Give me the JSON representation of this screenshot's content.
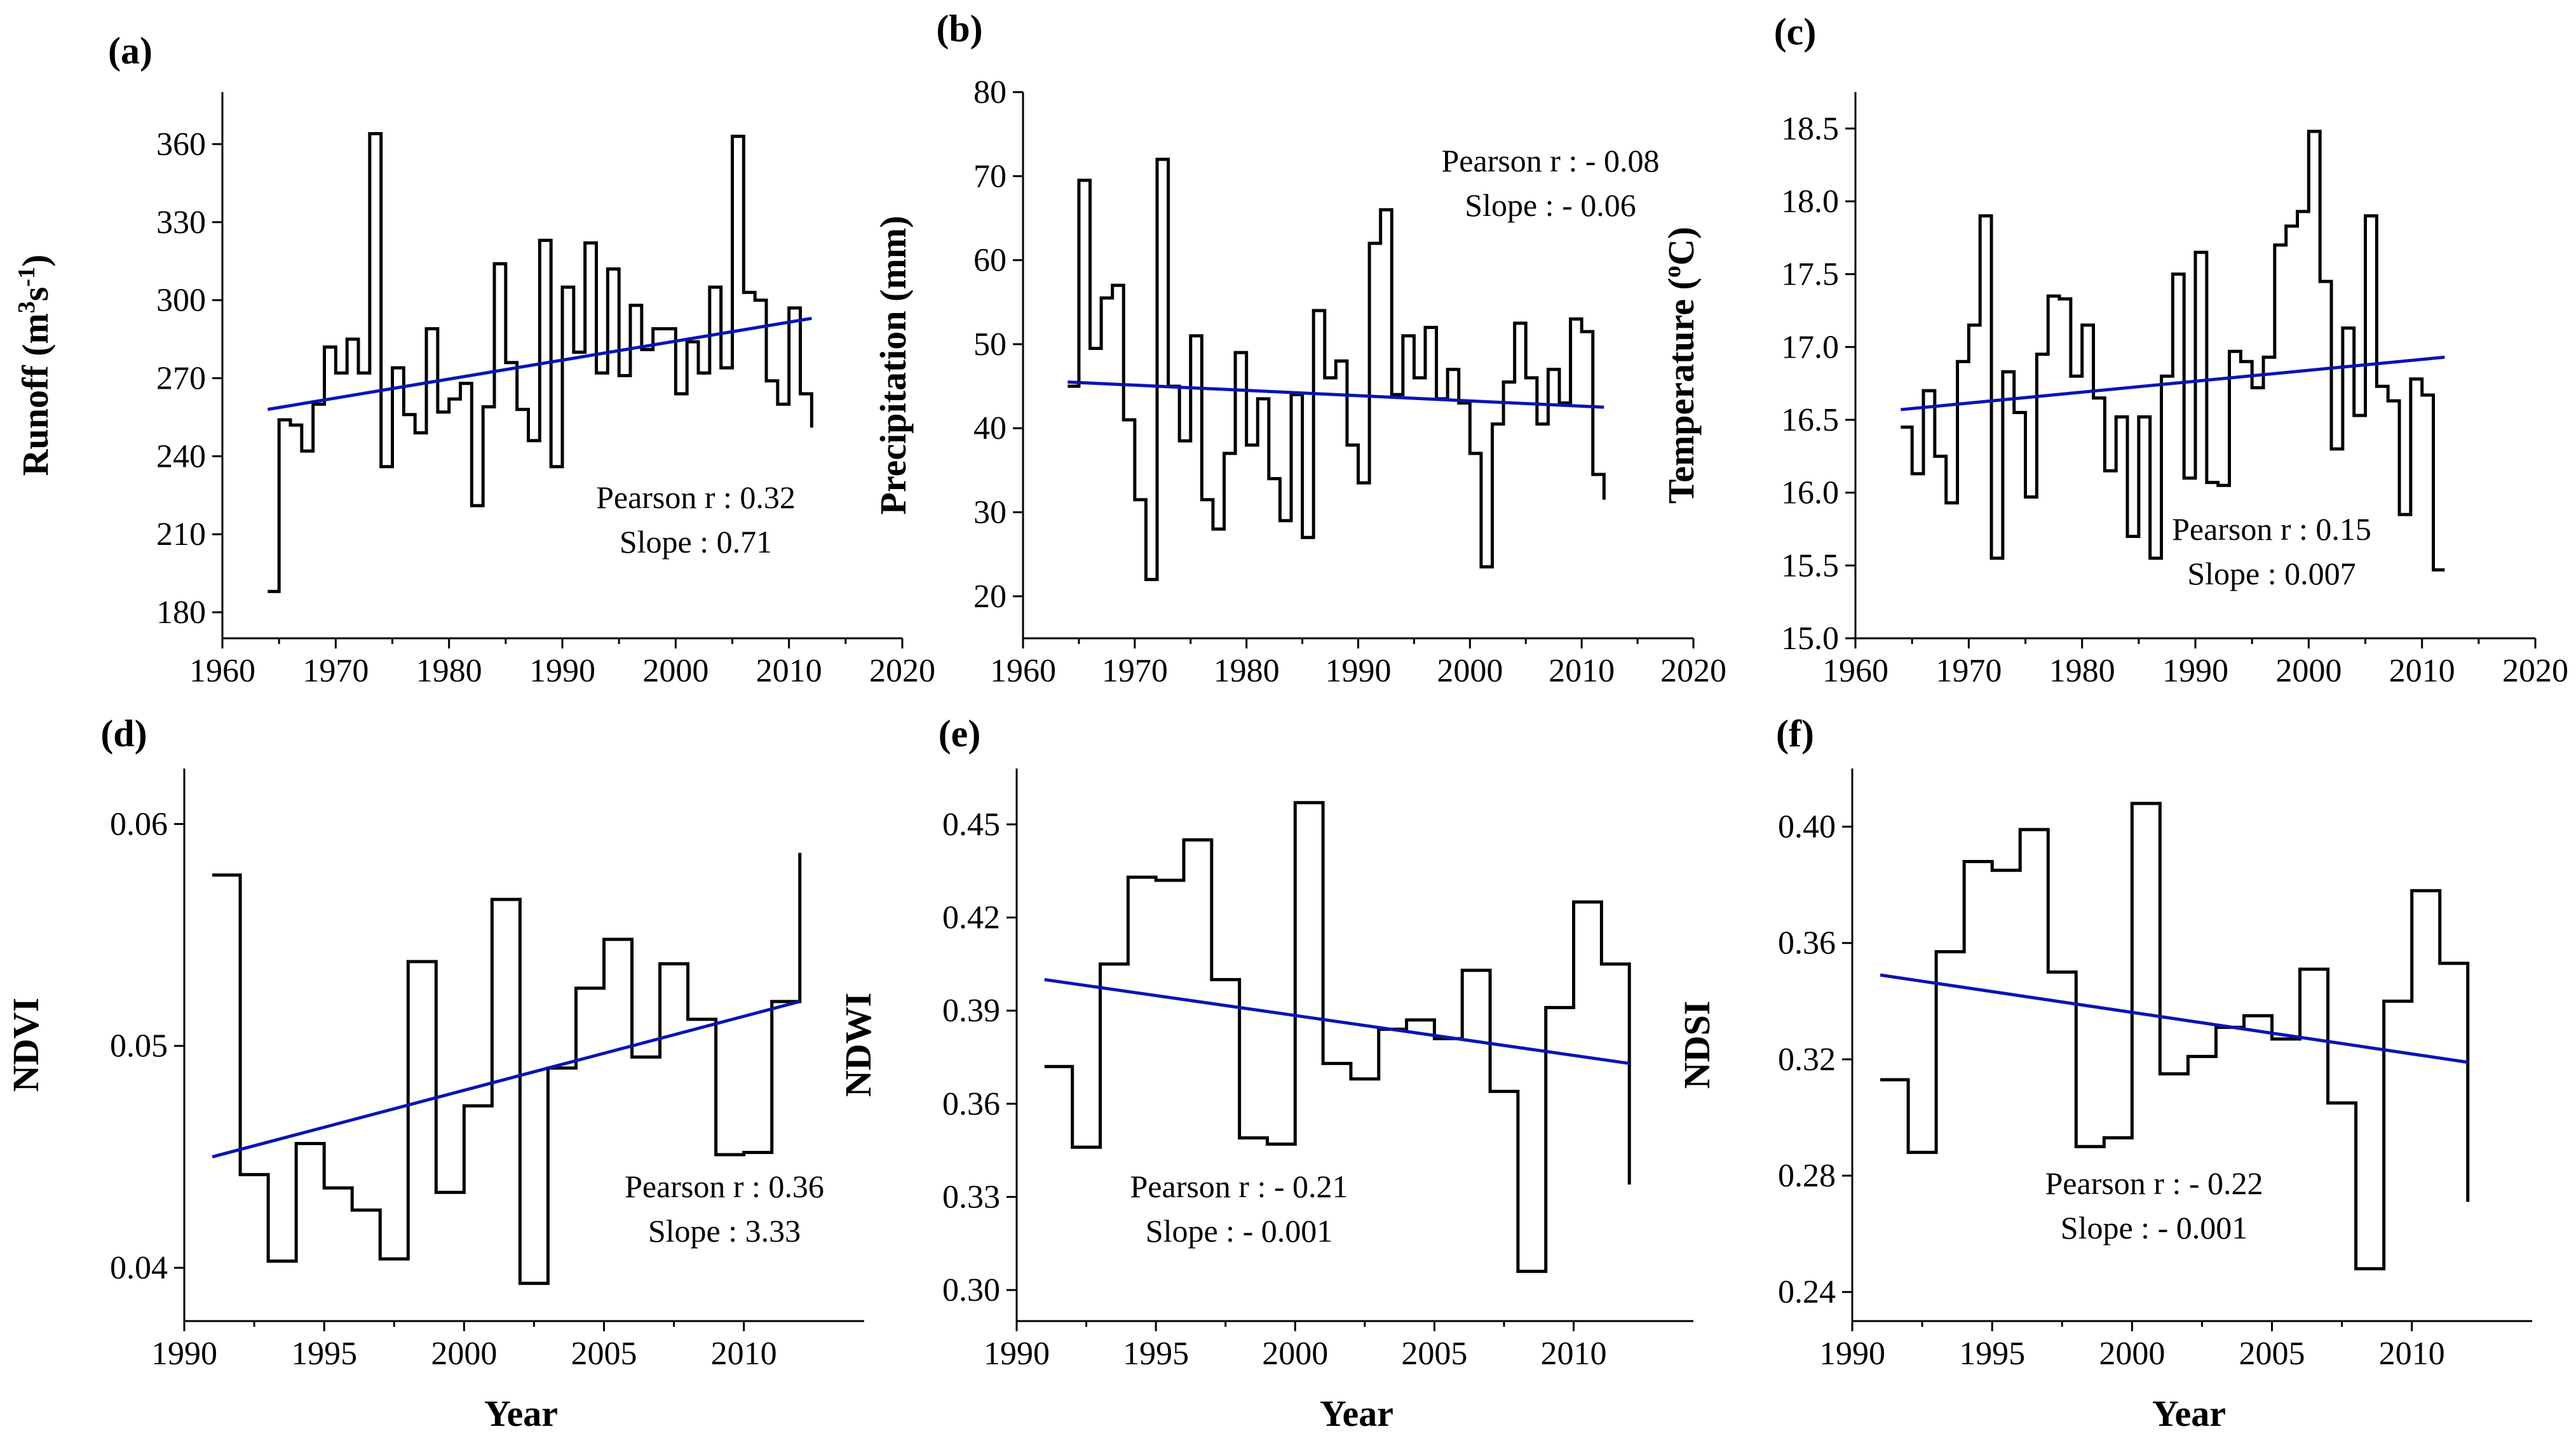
{
  "chart_data": [
    {
      "panel": "(a)",
      "type": "line",
      "ylabel": "Runoff (m3s-1)",
      "ylabel_parts": [
        "Runoff (m",
        "3",
        "s",
        "-1",
        ")"
      ],
      "xlim": [
        1960,
        2020
      ],
      "ylim": [
        170,
        380
      ],
      "xticks": [
        1960,
        1970,
        1980,
        1990,
        2000,
        2010,
        2020
      ],
      "yticks": [
        180,
        210,
        240,
        270,
        300,
        330,
        360
      ],
      "decimals": 0,
      "series": {
        "name": "Runoff",
        "x": [
          1964,
          1965,
          1966,
          1967,
          1968,
          1969,
          1970,
          1971,
          1972,
          1973,
          1974,
          1975,
          1976,
          1977,
          1978,
          1979,
          1980,
          1981,
          1982,
          1983,
          1984,
          1985,
          1986,
          1987,
          1988,
          1989,
          1990,
          1991,
          1992,
          1993,
          1994,
          1995,
          1996,
          1997,
          1998,
          1999,
          2000,
          2001,
          2002,
          2003,
          2004,
          2005,
          2006,
          2007,
          2008,
          2009,
          2010,
          2011
        ],
        "y": [
          188,
          254,
          252,
          242,
          260,
          282,
          272,
          285,
          272,
          364,
          236,
          274,
          256,
          249,
          289,
          257,
          262,
          268,
          221,
          259,
          314,
          276,
          258,
          246,
          323,
          236,
          305,
          280,
          322,
          272,
          312,
          271,
          298,
          281,
          289,
          289,
          264,
          284,
          272,
          305,
          274,
          363,
          303,
          300,
          269,
          260,
          297,
          264
        ],
        "end": 2012,
        "end_y": 251
      },
      "trend": {
        "x": [
          1964,
          2012
        ],
        "y": [
          258,
          293
        ]
      },
      "annotations": [
        "Pearson r : 0.32",
        "Slope : 0.71"
      ]
    },
    {
      "panel": "(b)",
      "type": "line",
      "ylabel": "Precipitation (mm)",
      "xlim": [
        1960,
        2020
      ],
      "ylim": [
        15,
        80
      ],
      "xticks": [
        1960,
        1970,
        1980,
        1990,
        2000,
        2010,
        2020
      ],
      "yticks": [
        20,
        30,
        40,
        50,
        60,
        70,
        80
      ],
      "decimals": 0,
      "series": {
        "name": "Precipitation",
        "x": [
          1964,
          1965,
          1966,
          1967,
          1968,
          1969,
          1970,
          1971,
          1972,
          1973,
          1974,
          1975,
          1976,
          1977,
          1978,
          1979,
          1980,
          1981,
          1982,
          1983,
          1984,
          1985,
          1986,
          1987,
          1988,
          1989,
          1990,
          1991,
          1992,
          1993,
          1994,
          1995,
          1996,
          1997,
          1998,
          1999,
          2000,
          2001,
          2002,
          2003,
          2004,
          2005,
          2006,
          2007,
          2008,
          2009,
          2010,
          2011
        ],
        "y": [
          45,
          69.5,
          49.5,
          55.5,
          57,
          41,
          31.5,
          22,
          72,
          45,
          38.5,
          51,
          31.5,
          28,
          37,
          49,
          38,
          43.5,
          34,
          29,
          44,
          27,
          54,
          46,
          48,
          38,
          33.5,
          62,
          66,
          44,
          51,
          46,
          52,
          43.5,
          47,
          43,
          37,
          23.5,
          40.5,
          45.5,
          52.5,
          46,
          40.5,
          47,
          43,
          53,
          51.5,
          34.5
        ],
        "end": 2012,
        "end_y": 31.5
      },
      "trend": {
        "x": [
          1964,
          2012
        ],
        "y": [
          45.5,
          42.5
        ]
      },
      "annotations": [
        "Pearson r : - 0.08",
        "Slope : - 0.06"
      ]
    },
    {
      "panel": "(c)",
      "type": "line",
      "ylabel": "Temperature (°C)",
      "ylabel_parts": [
        "Temperature (",
        "o",
        "C)"
      ],
      "xlim": [
        1960,
        2020
      ],
      "ylim": [
        15.0,
        18.75
      ],
      "xticks": [
        1960,
        1970,
        1980,
        1990,
        2000,
        2010,
        2020
      ],
      "yticks": [
        15.0,
        15.5,
        16.0,
        16.5,
        17.0,
        17.5,
        18.0,
        18.5
      ],
      "decimals": 1,
      "series": {
        "name": "Temperature",
        "x": [
          1964,
          1965,
          1966,
          1967,
          1968,
          1969,
          1970,
          1971,
          1972,
          1973,
          1974,
          1975,
          1976,
          1977,
          1978,
          1979,
          1980,
          1981,
          1982,
          1983,
          1984,
          1985,
          1986,
          1987,
          1988,
          1989,
          1990,
          1991,
          1992,
          1993,
          1994,
          1995,
          1996,
          1997,
          1998,
          1999,
          2000,
          2001,
          2002,
          2003,
          2004,
          2005,
          2006,
          2007,
          2008,
          2009,
          2010,
          2011
        ],
        "y": [
          16.45,
          16.13,
          16.7,
          16.25,
          15.93,
          16.9,
          17.15,
          17.9,
          15.55,
          16.83,
          16.55,
          15.97,
          16.95,
          17.35,
          17.33,
          16.8,
          17.15,
          16.65,
          16.15,
          16.52,
          15.7,
          16.52,
          15.55,
          16.8,
          17.5,
          16.1,
          17.65,
          16.07,
          16.05,
          16.97,
          16.9,
          16.72,
          16.93,
          17.7,
          17.83,
          17.93,
          18.48,
          17.45,
          16.3,
          17.13,
          16.53,
          17.9,
          16.73,
          16.63,
          15.85,
          16.78,
          16.67,
          15.47
        ],
        "end": 2012,
        "end_y": 15.47
      },
      "trend": {
        "x": [
          1964,
          2012
        ],
        "y": [
          16.57,
          16.93
        ]
      },
      "annotations": [
        "Pearson r : 0.15",
        "Slope : 0.007"
      ]
    },
    {
      "panel": "(d)",
      "type": "line",
      "ylabel": "NDVI",
      "xlabel": "Year",
      "xlim": [
        1990,
        2014.3
      ],
      "ylim": [
        0.0376,
        0.0625
      ],
      "xticks": [
        1990,
        1995,
        2000,
        2005,
        2010
      ],
      "yticks": [
        0.04,
        0.05,
        0.06
      ],
      "decimals": 2,
      "series": {
        "name": "NDVI",
        "x": [
          1991,
          1992,
          1993,
          1994,
          1995,
          1996,
          1997,
          1998,
          1999,
          2000,
          2001,
          2002,
          2003,
          2004,
          2005,
          2006,
          2007,
          2008,
          2009,
          2010,
          2011
        ],
        "y": [
          0.0577,
          0.0442,
          0.0403,
          0.0456,
          0.0436,
          0.0426,
          0.0404,
          0.0538,
          0.0434,
          0.0473,
          0.0566,
          0.0393,
          0.049,
          0.0526,
          0.0548,
          0.0495,
          0.0537,
          0.0512,
          0.0451,
          0.0452,
          0.052
        ],
        "end": 2012,
        "end_y": 0.0587
      },
      "trend": {
        "x": [
          1991,
          2012
        ],
        "y": [
          0.045,
          0.052
        ]
      },
      "annotations": [
        "Pearson r : 0.36",
        "Slope : 3.33"
      ]
    },
    {
      "panel": "(e)",
      "type": "line",
      "ylabel": "NDWI",
      "xlabel": "Year",
      "xlim": [
        1990,
        2014.3
      ],
      "ylim": [
        0.29,
        0.468
      ],
      "xticks": [
        1990,
        1995,
        2000,
        2005,
        2010
      ],
      "yticks": [
        0.3,
        0.33,
        0.36,
        0.39,
        0.42,
        0.45
      ],
      "decimals": 2,
      "series": {
        "name": "NDWI",
        "x": [
          1991,
          1992,
          1993,
          1994,
          1995,
          1996,
          1997,
          1998,
          1999,
          2000,
          2001,
          2002,
          2003,
          2004,
          2005,
          2006,
          2007,
          2008,
          2009,
          2010,
          2011
        ],
        "y": [
          0.372,
          0.346,
          0.405,
          0.433,
          0.432,
          0.445,
          0.4,
          0.349,
          0.347,
          0.457,
          0.373,
          0.368,
          0.384,
          0.387,
          0.381,
          0.403,
          0.364,
          0.306,
          0.391,
          0.425,
          0.405
        ],
        "end": 2012,
        "end_y": 0.334
      },
      "trend": {
        "x": [
          1991,
          2012
        ],
        "y": [
          0.4,
          0.373
        ]
      },
      "annotations": [
        "Pearson r : - 0.21",
        "Slope : - 0.001"
      ]
    },
    {
      "panel": "(f)",
      "type": "line",
      "ylabel": "NDSI",
      "xlabel": "Year",
      "xlim": [
        1990,
        2014.3
      ],
      "ylim": [
        0.23,
        0.42
      ],
      "xticks": [
        1990,
        1995,
        2000,
        2005,
        2010
      ],
      "yticks": [
        0.24,
        0.28,
        0.32,
        0.36,
        0.4
      ],
      "decimals": 2,
      "series": {
        "name": "NDSI",
        "x": [
          1991,
          1992,
          1993,
          1994,
          1995,
          1996,
          1997,
          1998,
          1999,
          2000,
          2001,
          2002,
          2003,
          2004,
          2005,
          2006,
          2007,
          2008,
          2009,
          2010,
          2011
        ],
        "y": [
          0.313,
          0.288,
          0.357,
          0.388,
          0.385,
          0.399,
          0.35,
          0.29,
          0.293,
          0.408,
          0.315,
          0.321,
          0.331,
          0.335,
          0.327,
          0.351,
          0.305,
          0.248,
          0.34,
          0.378,
          0.353
        ],
        "end": 2012,
        "end_y": 0.271
      },
      "trend": {
        "x": [
          1991,
          2012
        ],
        "y": [
          0.349,
          0.319
        ]
      },
      "annotations": [
        "Pearson r : - 0.22",
        "Slope : - 0.001"
      ]
    }
  ]
}
